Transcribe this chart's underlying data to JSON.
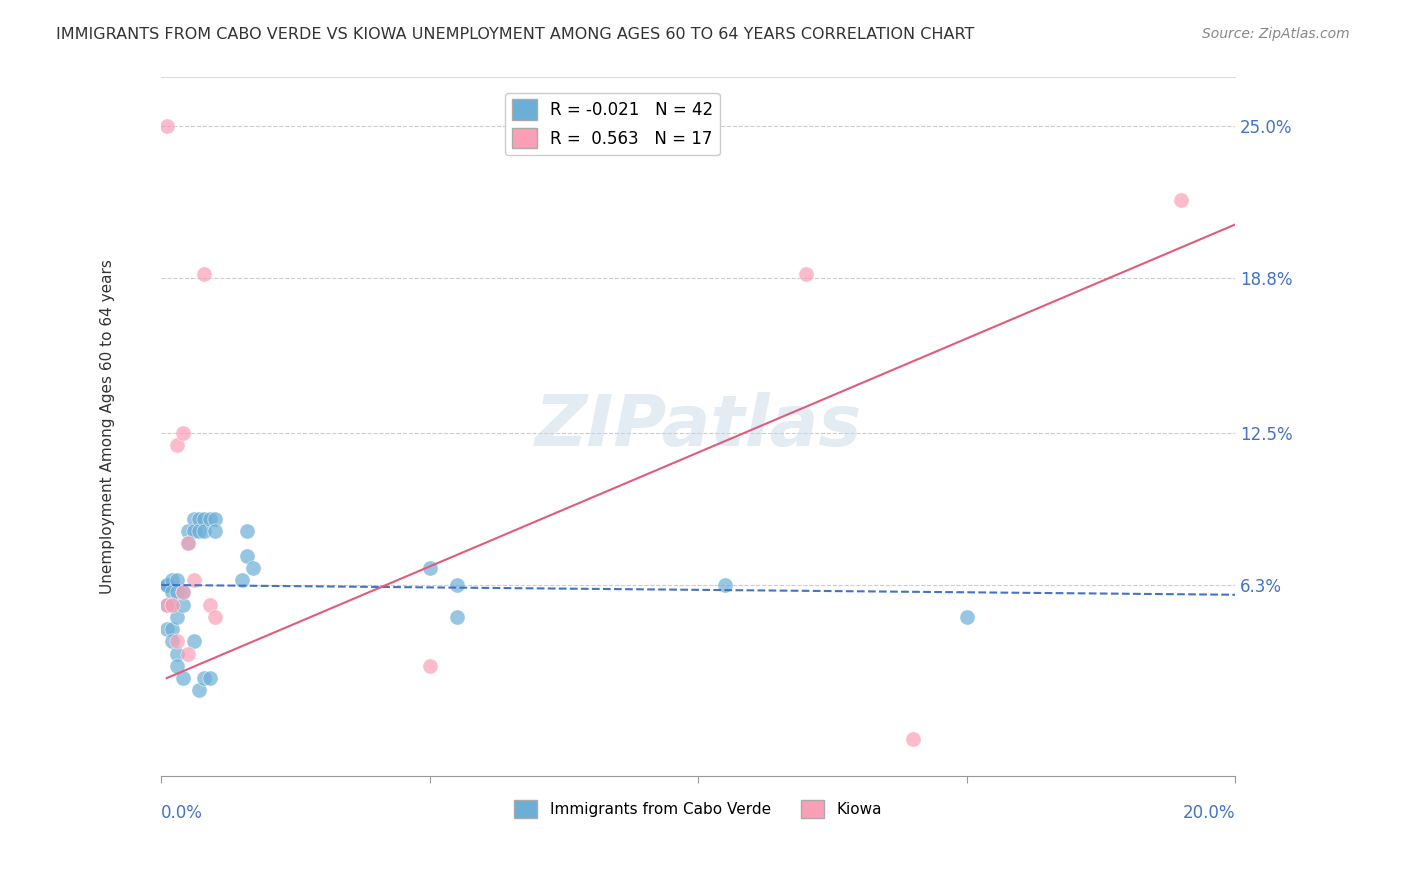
{
  "title": "IMMIGRANTS FROM CABO VERDE VS KIOWA UNEMPLOYMENT AMONG AGES 60 TO 64 YEARS CORRELATION CHART",
  "source": "Source: ZipAtlas.com",
  "ylabel": "Unemployment Among Ages 60 to 64 years",
  "yticks": [
    0.0,
    0.063,
    0.125,
    0.188,
    0.25
  ],
  "ytick_labels": [
    "",
    "6.3%",
    "12.5%",
    "18.8%",
    "25.0%"
  ],
  "xlim": [
    0.0,
    0.2
  ],
  "ylim": [
    -0.015,
    0.27
  ],
  "legend1_r": "-0.021",
  "legend1_n": "42",
  "legend2_r": "0.563",
  "legend2_n": "17",
  "color_blue": "#6baed6",
  "color_pink": "#fa9fb5",
  "watermark": "ZIPatlas",
  "cabo_verde_x": [
    0.001,
    0.001,
    0.001,
    0.001,
    0.001,
    0.002,
    0.002,
    0.002,
    0.002,
    0.002,
    0.003,
    0.003,
    0.003,
    0.003,
    0.003,
    0.004,
    0.004,
    0.004,
    0.005,
    0.005,
    0.006,
    0.006,
    0.006,
    0.007,
    0.007,
    0.007,
    0.008,
    0.008,
    0.008,
    0.009,
    0.009,
    0.01,
    0.01,
    0.015,
    0.016,
    0.016,
    0.017,
    0.05,
    0.055,
    0.055,
    0.105,
    0.15
  ],
  "cabo_verde_y": [
    0.063,
    0.063,
    0.063,
    0.055,
    0.045,
    0.065,
    0.06,
    0.055,
    0.045,
    0.04,
    0.065,
    0.06,
    0.05,
    0.035,
    0.03,
    0.06,
    0.055,
    0.025,
    0.085,
    0.08,
    0.09,
    0.085,
    0.04,
    0.09,
    0.085,
    0.02,
    0.09,
    0.085,
    0.025,
    0.09,
    0.025,
    0.09,
    0.085,
    0.065,
    0.085,
    0.075,
    0.07,
    0.07,
    0.05,
    0.063,
    0.063,
    0.05
  ],
  "kiowa_x": [
    0.001,
    0.001,
    0.002,
    0.003,
    0.003,
    0.004,
    0.004,
    0.005,
    0.005,
    0.006,
    0.008,
    0.009,
    0.01,
    0.05,
    0.12,
    0.14,
    0.19
  ],
  "kiowa_y": [
    0.25,
    0.055,
    0.055,
    0.12,
    0.04,
    0.125,
    0.06,
    0.08,
    0.035,
    0.065,
    0.19,
    0.055,
    0.05,
    0.03,
    0.19,
    0.0,
    0.22
  ],
  "blue_line_x": [
    0.0,
    0.2
  ],
  "blue_line_y": [
    0.063,
    0.059
  ],
  "pink_line_x": [
    0.001,
    0.2
  ],
  "pink_line_y": [
    0.025,
    0.21
  ],
  "line_blue_color": "#4472c4",
  "line_pink_color": "#e05c7a",
  "title_color": "#333333",
  "source_color": "#888888",
  "ylabel_color": "#333333",
  "right_tick_color": "#4472c4",
  "watermark_color": "#c8d8e8",
  "grid_color": "#cccccc",
  "bottom_spine_color": "#999999"
}
